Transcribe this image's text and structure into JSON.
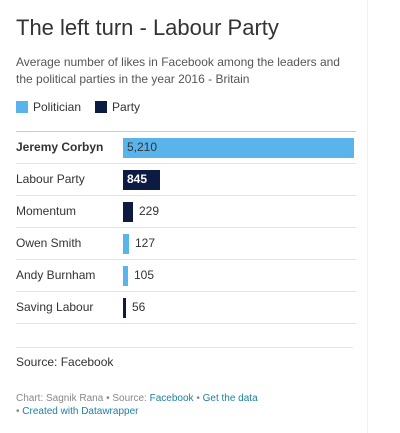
{
  "header": {
    "title": "The left turn - Labour Party",
    "subtitle": "Average number of likes in Facebook among the leaders and the political parties in the year 2016 - Britain"
  },
  "legend": [
    {
      "label": "Politician",
      "color": "#5ab4ec"
    },
    {
      "label": "Party",
      "color": "#0d1b42"
    }
  ],
  "chart_data": {
    "type": "bar",
    "orientation": "horizontal",
    "categories": [
      "Jeremy Corbyn",
      "Labour Party",
      "Momentum",
      "Owen Smith",
      "Andy Burnham",
      "Saving Labour"
    ],
    "values": [
      5210,
      845,
      229,
      127,
      105,
      56
    ],
    "value_labels": [
      "5,210",
      "845",
      "229",
      "127",
      "105",
      "56"
    ],
    "groups": [
      "Politician",
      "Party",
      "Party",
      "Politician",
      "Politician",
      "Party"
    ],
    "highlighted": [
      true,
      false,
      false,
      false,
      false,
      false
    ],
    "xlim": [
      0,
      5210
    ],
    "grid": false,
    "legend_position": "top-left"
  },
  "source": "Source: Facebook",
  "footer": {
    "chart_by": "Chart: Sagnik Rana",
    "source_prefix": "Source:",
    "source_link": "Facebook",
    "get_data": "Get the data",
    "created_with": "Created with Datawrapper",
    "bullet": "•"
  }
}
